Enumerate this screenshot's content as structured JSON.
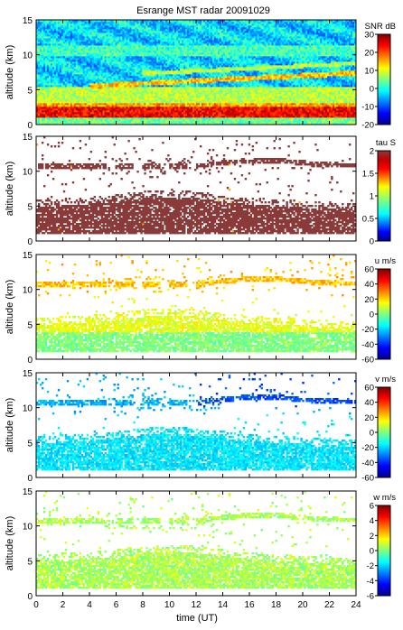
{
  "figure": {
    "title": "Esrange MST radar 20091029",
    "xlabel": "time (UT)"
  },
  "chart_data": [
    {
      "type": "heatmap",
      "ylabel": "altitude (km)",
      "colorbar_label": "SNR dB",
      "xlim": [
        0,
        24
      ],
      "ylim": [
        0,
        15
      ],
      "clim": [
        -20,
        30
      ],
      "xticks": [
        "0",
        "2",
        "4",
        "6",
        "8",
        "10",
        "12",
        "14",
        "16",
        "18",
        "20",
        "22",
        "24"
      ],
      "yticks": [
        "0",
        "5",
        "10",
        "15"
      ],
      "cticks": [
        "-20",
        "-10",
        "0",
        "10",
        "20",
        "30"
      ]
    },
    {
      "type": "heatmap",
      "ylabel": "altitude (km)",
      "colorbar_label": "tau S",
      "xlim": [
        0,
        24
      ],
      "ylim": [
        0,
        15
      ],
      "clim": [
        0,
        2
      ],
      "xticks": [
        "0",
        "2",
        "4",
        "6",
        "8",
        "10",
        "12",
        "14",
        "16",
        "18",
        "20",
        "22",
        "24"
      ],
      "yticks": [
        "0",
        "5",
        "10",
        "15"
      ],
      "cticks": [
        "0",
        "0.5",
        "1",
        "1.5",
        "2"
      ]
    },
    {
      "type": "heatmap",
      "ylabel": "altitude (km)",
      "colorbar_label": "u m/s",
      "xlim": [
        0,
        24
      ],
      "ylim": [
        0,
        15
      ],
      "clim": [
        -60,
        60
      ],
      "xticks": [
        "0",
        "2",
        "4",
        "6",
        "8",
        "10",
        "12",
        "14",
        "16",
        "18",
        "20",
        "22",
        "24"
      ],
      "yticks": [
        "0",
        "5",
        "10",
        "15"
      ],
      "cticks": [
        "-60",
        "-40",
        "-20",
        "0",
        "20",
        "40",
        "60"
      ]
    },
    {
      "type": "heatmap",
      "ylabel": "altitude (km)",
      "colorbar_label": "v m/s",
      "xlim": [
        0,
        24
      ],
      "ylim": [
        0,
        15
      ],
      "clim": [
        -60,
        60
      ],
      "xticks": [
        "0",
        "2",
        "4",
        "6",
        "8",
        "10",
        "12",
        "14",
        "16",
        "18",
        "20",
        "22",
        "24"
      ],
      "yticks": [
        "0",
        "5",
        "10",
        "15"
      ],
      "cticks": [
        "-60",
        "-40",
        "-20",
        "0",
        "20",
        "40",
        "60"
      ]
    },
    {
      "type": "heatmap",
      "ylabel": "altitude (km)",
      "colorbar_label": "w m/s",
      "xlim": [
        0,
        24
      ],
      "ylim": [
        0,
        15
      ],
      "clim": [
        -6,
        6
      ],
      "xticks": [
        "0",
        "2",
        "4",
        "6",
        "8",
        "10",
        "12",
        "14",
        "16",
        "18",
        "20",
        "22",
        "24"
      ],
      "yticks": [
        "0",
        "5",
        "10",
        "15"
      ],
      "cticks": [
        "-6",
        "-4",
        "-2",
        "0",
        "2",
        "4",
        "6"
      ]
    }
  ]
}
